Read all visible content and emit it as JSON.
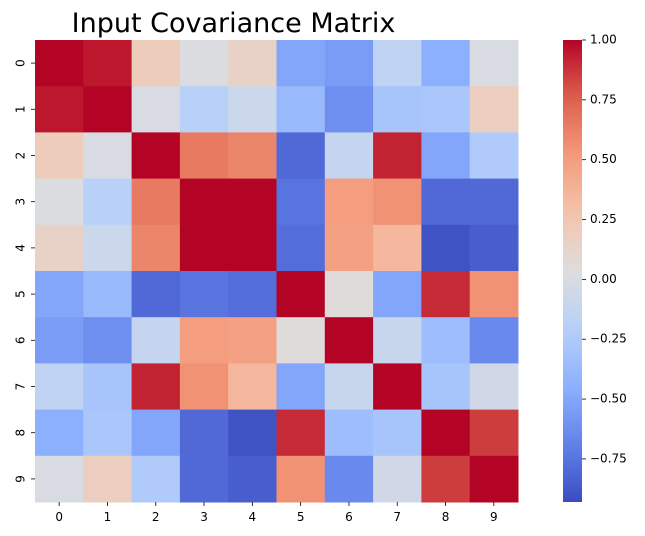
{
  "chart_data": {
    "type": "heatmap",
    "title": "Input Covariance Matrix",
    "xlabel": "",
    "ylabel": "",
    "x_labels": [
      "0",
      "1",
      "2",
      "3",
      "4",
      "5",
      "6",
      "7",
      "8",
      "9"
    ],
    "y_labels": [
      "0",
      "1",
      "2",
      "3",
      "4",
      "5",
      "6",
      "7",
      "8",
      "9"
    ],
    "colormap": "coolwarm",
    "vmin": -0.93,
    "vmax": 1.0,
    "colorbar": {
      "ticks": [
        1.0,
        0.75,
        0.5,
        0.25,
        0.0,
        -0.25,
        -0.5,
        -0.75
      ],
      "tick_labels": [
        "1.00",
        "0.75",
        "0.50",
        "0.25",
        "0.00",
        "−0.25",
        "−0.50",
        "−0.75"
      ]
    },
    "values": [
      [
        1.0,
        0.95,
        0.2,
        0.02,
        0.15,
        -0.5,
        -0.55,
        -0.15,
        -0.45,
        0.0
      ],
      [
        0.95,
        1.0,
        0.0,
        -0.2,
        -0.08,
        -0.38,
        -0.62,
        -0.3,
        -0.28,
        0.18
      ],
      [
        0.2,
        0.0,
        1.0,
        0.65,
        0.6,
        -0.8,
        -0.12,
        0.92,
        -0.5,
        -0.25
      ],
      [
        0.02,
        -0.2,
        0.65,
        1.0,
        1.0,
        -0.75,
        0.5,
        0.55,
        -0.8,
        -0.8
      ],
      [
        0.15,
        -0.08,
        0.6,
        1.0,
        1.0,
        -0.78,
        0.48,
        0.35,
        -0.9,
        -0.85
      ],
      [
        -0.5,
        -0.38,
        -0.8,
        -0.75,
        -0.78,
        1.0,
        0.05,
        -0.5,
        0.9,
        0.55
      ],
      [
        -0.55,
        -0.62,
        -0.12,
        0.5,
        0.48,
        0.05,
        1.0,
        -0.1,
        -0.35,
        -0.65
      ],
      [
        -0.15,
        -0.3,
        0.92,
        0.55,
        0.35,
        -0.5,
        -0.1,
        1.0,
        -0.3,
        -0.05
      ],
      [
        -0.45,
        -0.28,
        -0.5,
        -0.8,
        -0.9,
        0.9,
        -0.35,
        -0.3,
        1.0,
        0.85
      ],
      [
        0.0,
        0.18,
        -0.25,
        -0.8,
        -0.85,
        0.55,
        -0.65,
        -0.05,
        0.85,
        1.0
      ]
    ]
  }
}
